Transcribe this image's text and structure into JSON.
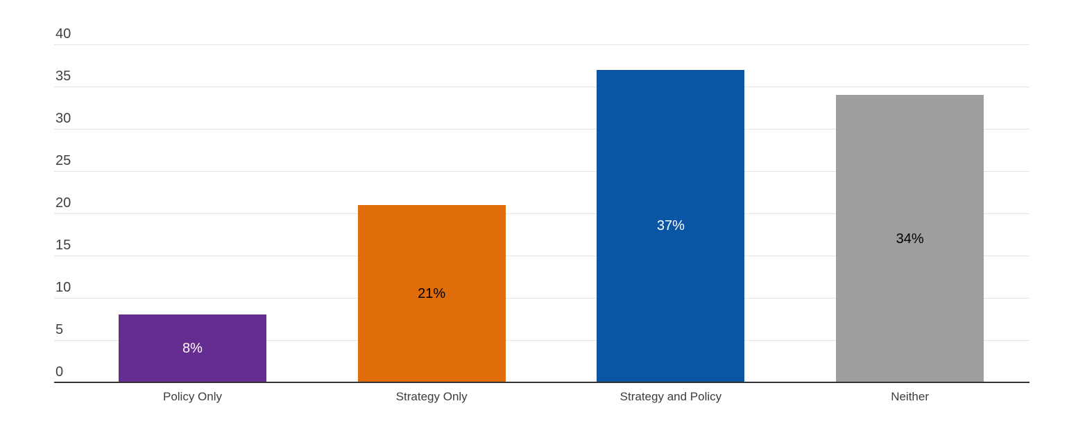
{
  "chart_data": {
    "type": "bar",
    "title": "",
    "xlabel": "",
    "ylabel": "",
    "categories": [
      "Policy Only",
      "Strategy Only",
      "Strategy and Policy",
      "Neither"
    ],
    "values": [
      8,
      21,
      37,
      34
    ],
    "value_labels": [
      "8%",
      "21%",
      "37%",
      "34%"
    ],
    "bar_colors": [
      "#662d91",
      "#e06c0a",
      "#0a56a4",
      "#9e9e9e"
    ],
    "value_label_colors": [
      "#ffffff",
      "#000000",
      "#ffffff",
      "#000000"
    ],
    "ylim": [
      0,
      40
    ],
    "yticks": [
      0,
      5,
      10,
      15,
      20,
      25,
      30,
      35,
      40
    ],
    "grid": true,
    "legend": "none",
    "gridline_color": "#e3e3e3",
    "axis_line_color": "#333333",
    "tick_label_color": "#404040",
    "category_label_color": "#3c3c3c",
    "background_color": "#ffffff"
  }
}
